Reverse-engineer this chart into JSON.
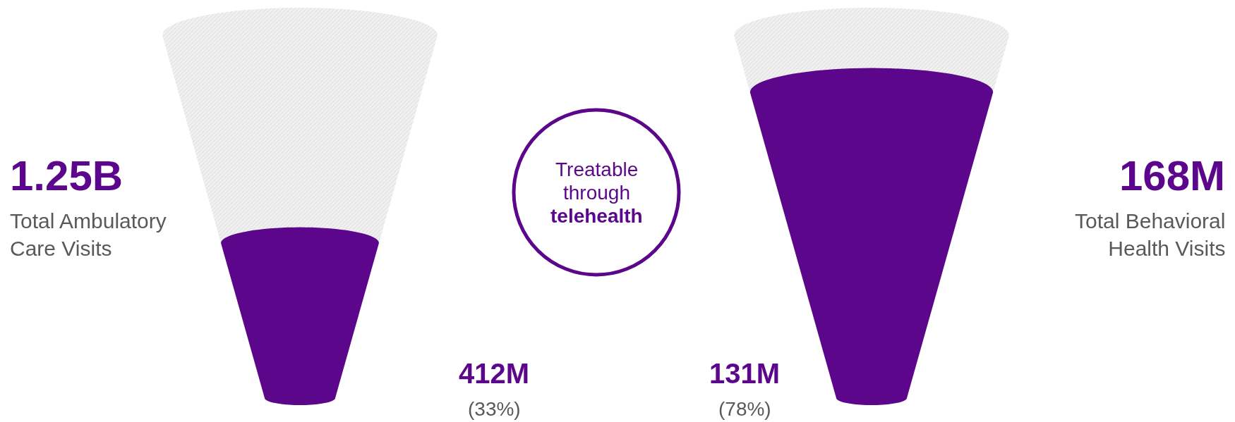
{
  "chart_data": [
    {
      "type": "other",
      "categories": [
        "Total Ambulatory Care Visits",
        null
      ],
      "values": [
        1250000000,
        412000000
      ],
      "value_labels": [
        "1.25B",
        "412M"
      ],
      "colors": [
        "#cccccc",
        "#5c068c"
      ],
      "annotations": [
        "(33%)"
      ]
    },
    {
      "type": "other",
      "annotations": [
        "Treatable",
        "through",
        "telehealth"
      ]
    },
    {
      "type": "other",
      "categories": [
        "Total Behavioral Health Visits",
        null
      ],
      "values": [
        168000000,
        131000000
      ],
      "value_labels": [
        "168M",
        "131M"
      ],
      "colors": [
        "#cccccc",
        "#5c068c"
      ],
      "annotations": [
        "(78%)"
      ]
    }
  ]
}
